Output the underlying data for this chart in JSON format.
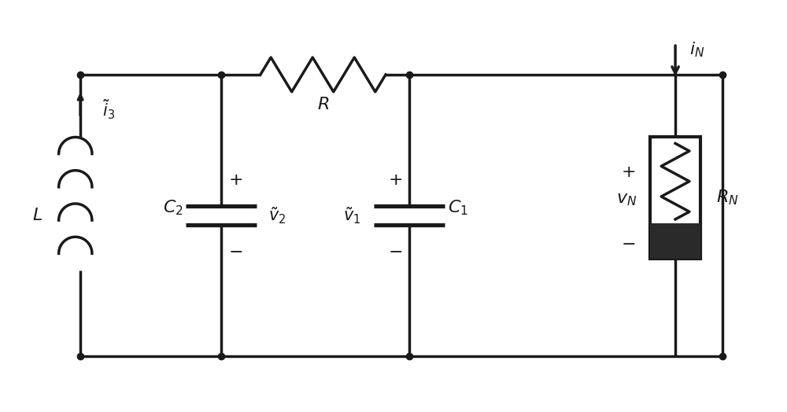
{
  "bg_color": "#ffffff",
  "line_color": "#1a1a1a",
  "line_width": 2.5,
  "fig_width": 10.0,
  "fig_height": 5.24,
  "labels": {
    "L": "L",
    "C2": "C_2",
    "v2": "\\tilde{v}_2",
    "C1": "C_1",
    "v1": "\\tilde{v}_1",
    "i3": "\\tilde{i}_3",
    "R": "R",
    "RN": "R_N",
    "vN": "v_N",
    "iN": "i_N"
  },
  "font_size": 16
}
